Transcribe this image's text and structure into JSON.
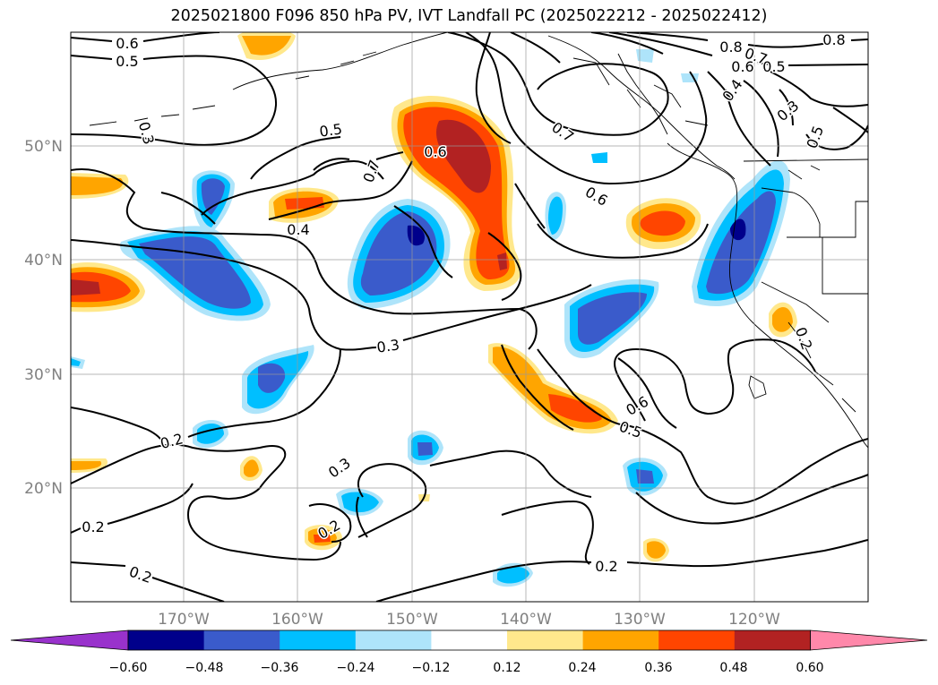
{
  "title": "2025021800 F096 850 hPa PV, IVT Landfall PC (2025022212 - 2025022412)",
  "lat_labels": [
    "50°N",
    "40°N",
    "30°N",
    "20°N"
  ],
  "lon_labels": [
    "170°W",
    "160°W",
    "150°W",
    "140°W",
    "130°W",
    "120°W"
  ],
  "contour_labels": [
    "0.6",
    "0.5",
    "0.3",
    "0.5",
    "0.6",
    "0.7",
    "0.4",
    "0.7",
    "0.6",
    "0.8",
    "0.7",
    "0.6",
    "0.5",
    "0.8",
    "0.4",
    "0.3",
    "0.5",
    "0.3",
    "0.2",
    "0.3",
    "0.2",
    "0.2",
    "0.2",
    "0.6",
    "0.5",
    "0.2",
    "0.2"
  ],
  "colorbar": {
    "ticks": [
      "−0.60",
      "−0.48",
      "−0.36",
      "−0.24",
      "−0.12",
      "0.12",
      "0.24",
      "0.36",
      "0.48",
      "0.60"
    ],
    "colors": [
      "#9932cc",
      "#00008b",
      "#3a5bcb",
      "#00bfff",
      "#aee4fa",
      "#ffffff",
      "#ffe88c",
      "#ffa500",
      "#ff4500",
      "#b22222",
      "#ff88aa"
    ]
  },
  "fill_colors": {
    "neg_light": "#aee4fa",
    "neg_mid": "#00bfff",
    "neg_strong": "#3a5bcb",
    "neg_max": "#00008b",
    "pos_light": "#ffe88c",
    "pos_mid": "#ffa500",
    "pos_strong": "#ff4500",
    "pos_max": "#b22222"
  }
}
